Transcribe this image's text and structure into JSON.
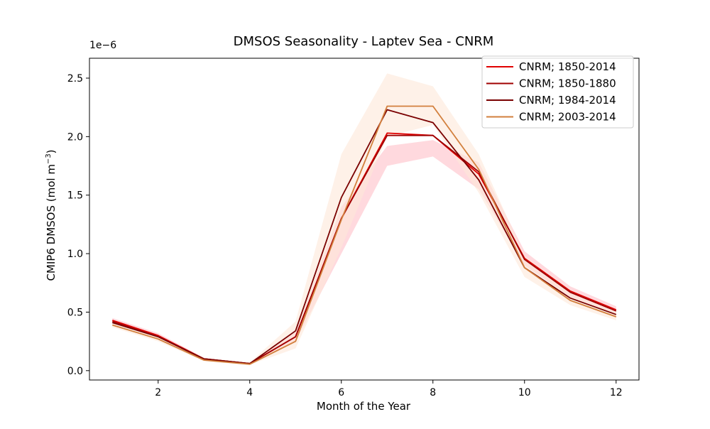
{
  "chart_data": {
    "type": "line",
    "title": "DMSOS Seasonality - Laptev Sea - CNRM",
    "xlabel": "Month of the Year",
    "ylabel_main": "CMIP6 DMSOS (mol m",
    "ylabel_sup": "−3",
    "ylabel_close": ")",
    "y_offset_label": "1e−6",
    "xlim": [
      0.5,
      12.5
    ],
    "ylim": [
      -0.08,
      2.67
    ],
    "x_ticks": [
      2,
      4,
      6,
      8,
      10,
      12
    ],
    "x_tick_labels": [
      "2",
      "4",
      "6",
      "8",
      "10",
      "12"
    ],
    "y_ticks": [
      0.0,
      0.5,
      1.0,
      1.5,
      2.0,
      2.5
    ],
    "y_tick_labels": [
      "0.0",
      "0.5",
      "1.0",
      "1.5",
      "2.0",
      "2.5"
    ],
    "grid": false,
    "legend_position": "top-right",
    "x": [
      1,
      2,
      3,
      4,
      5,
      6,
      7,
      8,
      9,
      10,
      11,
      12
    ],
    "series": [
      {
        "name": "CNRM; 1850-2014",
        "color": "#e00000",
        "band_color": "#ffc0c8",
        "values": [
          0.43,
          0.3,
          0.1,
          0.06,
          0.29,
          1.3,
          2.03,
          2.01,
          1.68,
          0.96,
          0.68,
          0.52
        ],
        "band_low": [
          0.41,
          0.28,
          0.09,
          0.055,
          0.25,
          1.0,
          1.75,
          1.83,
          1.55,
          0.9,
          0.63,
          0.49
        ],
        "band_high": [
          0.45,
          0.32,
          0.11,
          0.065,
          0.33,
          1.4,
          1.92,
          1.97,
          1.78,
          1.02,
          0.72,
          0.55
        ]
      },
      {
        "name": "CNRM; 1850-1880",
        "color": "#a00000",
        "values": [
          0.42,
          0.29,
          0.1,
          0.06,
          0.29,
          1.3,
          2.01,
          2.01,
          1.7,
          0.95,
          0.67,
          0.51
        ]
      },
      {
        "name": "CNRM; 1984-2014",
        "color": "#7a0000",
        "values": [
          0.41,
          0.29,
          0.1,
          0.06,
          0.34,
          1.48,
          2.23,
          2.12,
          1.63,
          0.88,
          0.62,
          0.48
        ]
      },
      {
        "name": "CNRM; 2003-2014",
        "color": "#d27f3c",
        "band_color": "#fde8d8",
        "values": [
          0.39,
          0.27,
          0.09,
          0.055,
          0.25,
          1.29,
          2.26,
          2.26,
          1.72,
          0.88,
          0.6,
          0.46
        ],
        "band_low": [
          0.37,
          0.25,
          0.08,
          0.05,
          0.19,
          1.05,
          2.0,
          2.1,
          1.52,
          0.8,
          0.56,
          0.43
        ],
        "band_high": [
          0.42,
          0.3,
          0.11,
          0.07,
          0.42,
          1.85,
          2.54,
          2.43,
          1.85,
          0.98,
          0.69,
          0.52
        ]
      }
    ]
  }
}
